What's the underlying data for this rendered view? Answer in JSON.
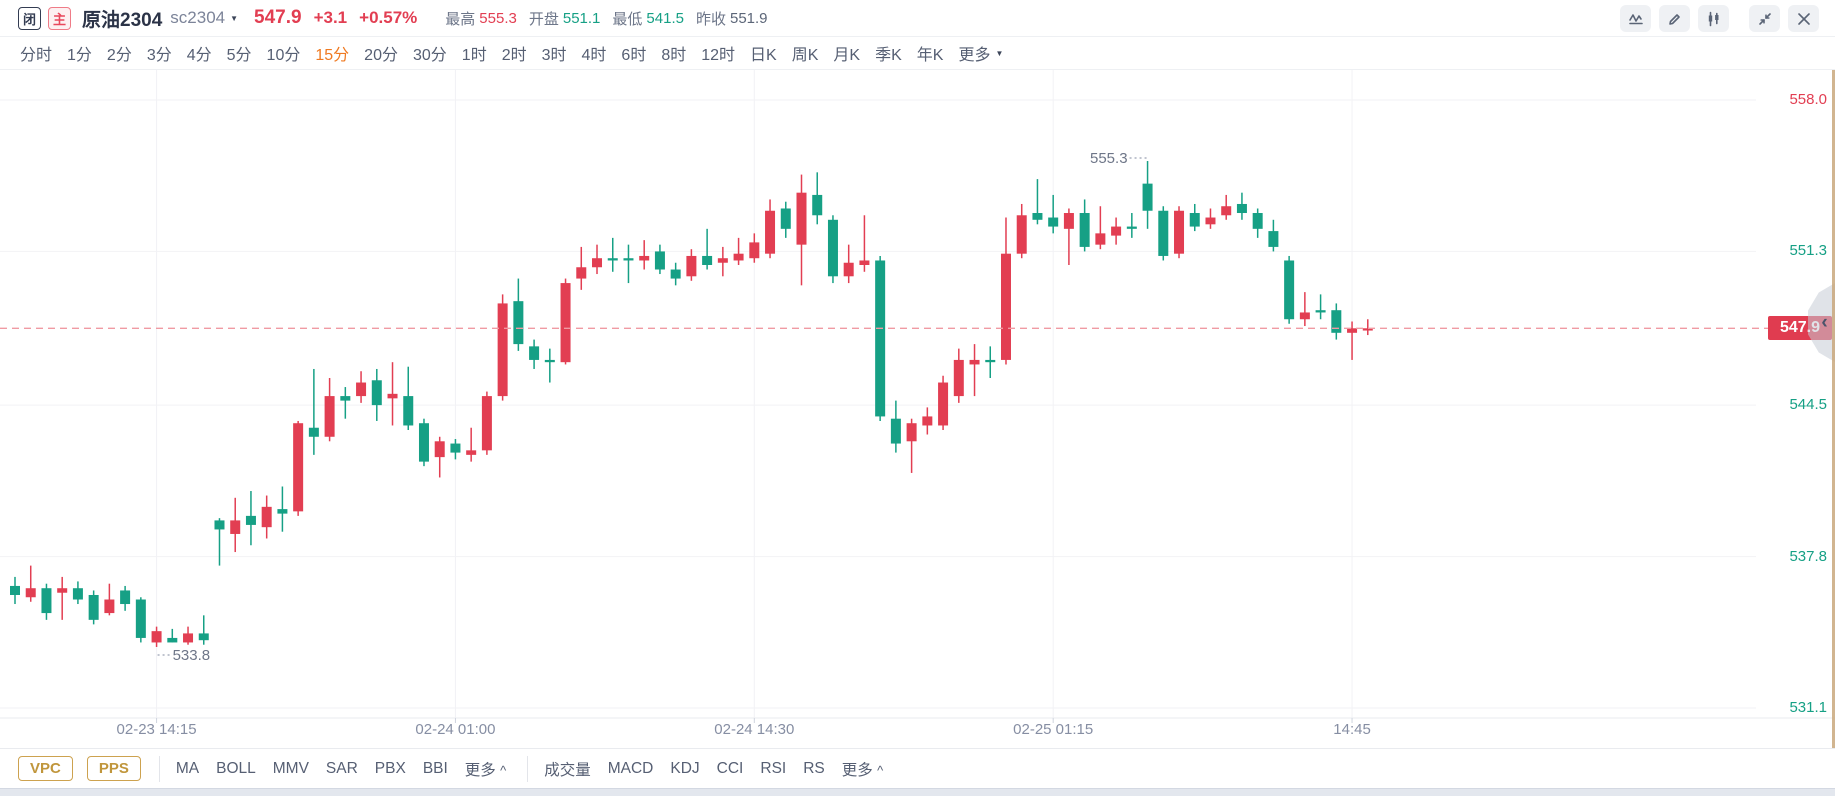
{
  "header": {
    "badges": [
      {
        "label": "闭",
        "style": "dark"
      },
      {
        "label": "主",
        "style": "red"
      }
    ],
    "title": "原油2304",
    "code": "sc2304",
    "price": "547.9",
    "change": "+3.1",
    "change_pct": "+0.57%",
    "stats": [
      {
        "label": "最高",
        "value": "555.3",
        "color": "red"
      },
      {
        "label": "开盘",
        "value": "551.1",
        "color": "green"
      },
      {
        "label": "最低",
        "value": "541.5",
        "color": "green"
      },
      {
        "label": "昨收",
        "value": "551.9",
        "color": "neutral"
      }
    ],
    "icons": [
      "indicator-chart-icon",
      "draw-tool-icon",
      "candlestick-style-icon",
      "collapse-icon",
      "close-icon"
    ]
  },
  "timeframe_tabs": {
    "items": [
      "分时",
      "1分",
      "2分",
      "3分",
      "4分",
      "5分",
      "10分",
      "15分",
      "20分",
      "30分",
      "1时",
      "2时",
      "3时",
      "4时",
      "6时",
      "8时",
      "12时",
      "日K",
      "周K",
      "月K",
      "季K",
      "年K"
    ],
    "active": "15分",
    "more_label": "更多"
  },
  "bottom_toolbar": {
    "buttons": [
      "VPC",
      "PPS"
    ],
    "overlay_indicators": [
      "MA",
      "BOLL",
      "MMV",
      "SAR",
      "PBX",
      "BBI"
    ],
    "overlay_more": "更多",
    "sub_indicators": [
      "成交量",
      "MACD",
      "KDJ",
      "CCI",
      "RSI",
      "RS"
    ],
    "sub_more": "更多"
  },
  "colors": {
    "up": "#e23e52",
    "down": "#16a085",
    "active_tab": "#ef7a22",
    "dashed_line": "#f09aa3",
    "price_tag_bg": "#e03c50",
    "grid": "#f2f2f5",
    "gold": "#cda24f"
  },
  "chart_data": {
    "type": "candlestick",
    "interval": "15分",
    "symbol": "原油2304 sc2304",
    "current_price": 547.9,
    "prev_close": 551.9,
    "ylim": [
      531.1,
      558.0
    ],
    "grid": true,
    "y_ticks": [
      {
        "label": "558.0",
        "price": 558.0,
        "color": "red"
      },
      {
        "label": "551.3",
        "price": 551.3,
        "color": "green"
      },
      {
        "label": "544.5",
        "price": 544.5,
        "color": "green"
      },
      {
        "label": "537.8",
        "price": 537.8,
        "color": "green"
      },
      {
        "label": "531.1",
        "price": 531.1,
        "color": "green"
      }
    ],
    "x_ticks": [
      {
        "label": "02-23 14:15",
        "candle_index": 9
      },
      {
        "label": "02-24 01:00",
        "candle_index": 28
      },
      {
        "label": "02-24 14:30",
        "candle_index": 47
      },
      {
        "label": "02-25 01:15",
        "candle_index": 66
      },
      {
        "label": "14:45",
        "candle_index": 85
      }
    ],
    "annotations": [
      {
        "text": "555.3",
        "candle_index": 72,
        "type": "high"
      },
      {
        "text": "533.8",
        "candle_index": 9,
        "type": "low"
      }
    ],
    "candles_ohlc": [
      [
        536.5,
        536.9,
        535.7,
        536.1
      ],
      [
        536.0,
        537.4,
        535.8,
        536.4
      ],
      [
        536.4,
        536.6,
        535.0,
        535.3
      ],
      [
        536.2,
        536.9,
        535.0,
        536.4
      ],
      [
        536.4,
        536.7,
        535.7,
        535.9
      ],
      [
        536.1,
        536.3,
        534.8,
        535.0
      ],
      [
        535.3,
        536.6,
        535.2,
        535.9
      ],
      [
        536.3,
        536.5,
        535.4,
        535.7
      ],
      [
        535.9,
        536.0,
        534.0,
        534.2
      ],
      [
        534.0,
        534.7,
        533.8,
        534.5
      ],
      [
        534.2,
        534.6,
        534.0,
        534.0
      ],
      [
        534.0,
        534.7,
        533.9,
        534.4
      ],
      [
        534.4,
        535.2,
        533.9,
        534.1
      ],
      [
        539.4,
        539.5,
        537.4,
        539.0
      ],
      [
        538.8,
        540.4,
        538.0,
        539.4
      ],
      [
        539.6,
        540.7,
        538.3,
        539.2
      ],
      [
        539.1,
        540.5,
        538.6,
        540.0
      ],
      [
        539.9,
        540.9,
        538.9,
        539.7
      ],
      [
        539.8,
        543.8,
        539.6,
        543.7
      ],
      [
        543.5,
        546.1,
        542.3,
        543.1
      ],
      [
        543.1,
        545.7,
        542.9,
        544.9
      ],
      [
        544.9,
        545.3,
        543.9,
        544.7
      ],
      [
        544.9,
        546.0,
        544.6,
        545.5
      ],
      [
        545.6,
        546.1,
        543.8,
        544.5
      ],
      [
        544.8,
        546.4,
        543.6,
        545.0
      ],
      [
        544.9,
        546.2,
        543.4,
        543.6
      ],
      [
        543.7,
        543.9,
        541.8,
        542.0
      ],
      [
        542.2,
        543.1,
        541.3,
        542.9
      ],
      [
        542.8,
        543.0,
        542.1,
        542.4
      ],
      [
        542.3,
        543.5,
        542.0,
        542.5
      ],
      [
        542.5,
        545.1,
        542.3,
        544.9
      ],
      [
        544.9,
        549.4,
        544.7,
        549.0
      ],
      [
        549.1,
        550.1,
        546.9,
        547.2
      ],
      [
        547.1,
        547.4,
        546.1,
        546.5
      ],
      [
        546.5,
        547.0,
        545.5,
        546.4
      ],
      [
        546.4,
        550.1,
        546.3,
        549.9
      ],
      [
        550.1,
        551.5,
        549.6,
        550.6
      ],
      [
        550.6,
        551.6,
        550.3,
        551.0
      ],
      [
        551.0,
        551.9,
        550.4,
        550.9
      ],
      [
        551.0,
        551.6,
        549.9,
        550.9
      ],
      [
        550.9,
        551.8,
        550.5,
        551.1
      ],
      [
        551.3,
        551.6,
        550.3,
        550.5
      ],
      [
        550.5,
        550.8,
        549.8,
        550.1
      ],
      [
        550.2,
        551.4,
        550.0,
        551.1
      ],
      [
        551.1,
        552.3,
        550.5,
        550.7
      ],
      [
        550.8,
        551.5,
        550.2,
        551.0
      ],
      [
        550.9,
        551.9,
        550.7,
        551.2
      ],
      [
        551.0,
        552.1,
        550.8,
        551.7
      ],
      [
        551.2,
        553.6,
        551.0,
        553.1
      ],
      [
        553.2,
        553.5,
        551.9,
        552.3
      ],
      [
        551.6,
        554.7,
        549.8,
        553.9
      ],
      [
        553.8,
        554.8,
        552.5,
        552.9
      ],
      [
        552.7,
        552.9,
        549.9,
        550.2
      ],
      [
        550.2,
        551.6,
        549.9,
        550.8
      ],
      [
        550.7,
        552.9,
        550.4,
        550.9
      ],
      [
        550.9,
        551.1,
        543.8,
        544.0
      ],
      [
        543.9,
        544.7,
        542.4,
        542.8
      ],
      [
        542.9,
        543.9,
        541.5,
        543.7
      ],
      [
        543.6,
        544.4,
        543.2,
        544.0
      ],
      [
        543.6,
        545.8,
        543.4,
        545.5
      ],
      [
        544.9,
        547.0,
        544.6,
        546.5
      ],
      [
        546.3,
        547.2,
        544.9,
        546.5
      ],
      [
        546.5,
        547.1,
        545.7,
        546.4
      ],
      [
        546.5,
        552.8,
        546.3,
        551.2
      ],
      [
        551.2,
        553.4,
        551.0,
        552.9
      ],
      [
        553.0,
        554.5,
        552.5,
        552.7
      ],
      [
        552.8,
        553.8,
        552.1,
        552.4
      ],
      [
        552.3,
        553.2,
        550.7,
        553.0
      ],
      [
        553.0,
        553.6,
        551.3,
        551.5
      ],
      [
        551.6,
        553.3,
        551.4,
        552.1
      ],
      [
        552.0,
        552.8,
        551.6,
        552.4
      ],
      [
        552.4,
        553.0,
        551.9,
        552.3
      ],
      [
        554.3,
        555.3,
        552.3,
        553.1
      ],
      [
        553.1,
        553.3,
        550.9,
        551.1
      ],
      [
        551.2,
        553.3,
        551.0,
        553.1
      ],
      [
        553.0,
        553.4,
        552.2,
        552.4
      ],
      [
        552.5,
        553.2,
        552.3,
        552.8
      ],
      [
        552.9,
        553.8,
        552.7,
        553.3
      ],
      [
        553.4,
        553.9,
        552.7,
        553.0
      ],
      [
        553.0,
        553.2,
        551.9,
        552.3
      ],
      [
        552.2,
        552.7,
        551.3,
        551.5
      ],
      [
        550.9,
        551.1,
        548.1,
        548.3
      ],
      [
        548.3,
        549.5,
        548.0,
        548.6
      ],
      [
        548.7,
        549.4,
        548.3,
        548.6
      ],
      [
        548.7,
        549.0,
        547.4,
        547.7
      ],
      [
        547.7,
        548.2,
        546.5,
        547.9
      ],
      [
        547.8,
        548.3,
        547.6,
        547.9
      ]
    ]
  }
}
